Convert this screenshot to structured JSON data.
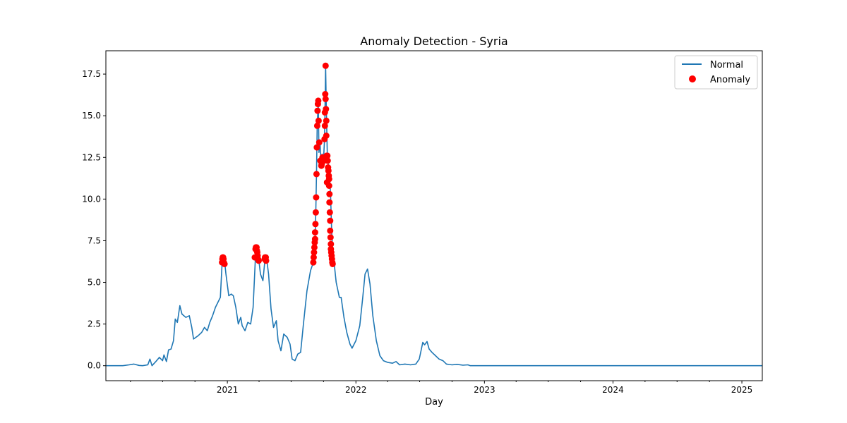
{
  "chart_data": {
    "type": "line",
    "title": "Anomaly Detection - Syria",
    "xlabel": "Day",
    "ylabel": "",
    "x_axis": "date",
    "xlim": [
      "2020-01-22",
      "2025-02-28"
    ],
    "ylim": [
      -0.9,
      18.9
    ],
    "x_tick_labels": [
      "2021",
      "2022",
      "2023",
      "2024",
      "2025"
    ],
    "y_ticks": [
      0.0,
      2.5,
      5.0,
      7.5,
      10.0,
      12.5,
      15.0,
      17.5
    ],
    "y_tick_labels": [
      "0.0",
      "2.5",
      "5.0",
      "7.5",
      "10.0",
      "12.5",
      "15.0",
      "17.5"
    ],
    "grid": false,
    "legend": {
      "position": "top-right",
      "entries": [
        "Normal",
        "Anomaly"
      ]
    },
    "colors": {
      "normal": "#1f77b4",
      "anomaly": "#ff0000"
    },
    "series": [
      {
        "name": "Normal",
        "type": "line",
        "points": [
          [
            "2020-01-22",
            0.0
          ],
          [
            "2020-03-10",
            0.0
          ],
          [
            "2020-03-28",
            0.05
          ],
          [
            "2020-04-10",
            0.1
          ],
          [
            "2020-04-25",
            0.02
          ],
          [
            "2020-05-05",
            0.0
          ],
          [
            "2020-05-20",
            0.05
          ],
          [
            "2020-05-26",
            0.4
          ],
          [
            "2020-06-01",
            0.0
          ],
          [
            "2020-06-12",
            0.25
          ],
          [
            "2020-06-22",
            0.5
          ],
          [
            "2020-07-01",
            0.3
          ],
          [
            "2020-07-05",
            0.65
          ],
          [
            "2020-07-12",
            0.25
          ],
          [
            "2020-07-18",
            0.95
          ],
          [
            "2020-07-25",
            1.0
          ],
          [
            "2020-08-01",
            1.5
          ],
          [
            "2020-08-06",
            2.8
          ],
          [
            "2020-08-12",
            2.6
          ],
          [
            "2020-08-19",
            3.6
          ],
          [
            "2020-08-25",
            3.1
          ],
          [
            "2020-09-05",
            2.9
          ],
          [
            "2020-09-15",
            3.0
          ],
          [
            "2020-09-22",
            2.3
          ],
          [
            "2020-09-27",
            1.6
          ],
          [
            "2020-10-10",
            1.8
          ],
          [
            "2020-10-20",
            2.0
          ],
          [
            "2020-10-28",
            2.3
          ],
          [
            "2020-11-05",
            2.1
          ],
          [
            "2020-11-12",
            2.6
          ],
          [
            "2020-11-20",
            3.0
          ],
          [
            "2020-11-28",
            3.5
          ],
          [
            "2020-12-05",
            3.8
          ],
          [
            "2020-12-12",
            4.1
          ],
          [
            "2020-12-17",
            6.1
          ],
          [
            "2020-12-20",
            6.5
          ],
          [
            "2020-12-24",
            6.3
          ],
          [
            "2020-12-28",
            5.5
          ],
          [
            "2021-01-05",
            4.2
          ],
          [
            "2021-01-12",
            4.3
          ],
          [
            "2021-01-18",
            4.2
          ],
          [
            "2021-01-25",
            3.5
          ],
          [
            "2021-02-01",
            2.5
          ],
          [
            "2021-02-08",
            2.9
          ],
          [
            "2021-02-12",
            2.4
          ],
          [
            "2021-02-20",
            2.1
          ],
          [
            "2021-02-28",
            2.6
          ],
          [
            "2021-03-08",
            2.5
          ],
          [
            "2021-03-15",
            3.5
          ],
          [
            "2021-03-22",
            6.6
          ],
          [
            "2021-03-26",
            7.1
          ],
          [
            "2021-03-30",
            6.6
          ],
          [
            "2021-04-05",
            5.5
          ],
          [
            "2021-04-12",
            5.1
          ],
          [
            "2021-04-18",
            6.4
          ],
          [
            "2021-04-22",
            6.5
          ],
          [
            "2021-04-28",
            5.5
          ],
          [
            "2021-05-05",
            3.4
          ],
          [
            "2021-05-12",
            2.3
          ],
          [
            "2021-05-20",
            2.7
          ],
          [
            "2021-05-25",
            1.5
          ],
          [
            "2021-06-02",
            0.9
          ],
          [
            "2021-06-10",
            1.9
          ],
          [
            "2021-06-20",
            1.7
          ],
          [
            "2021-06-28",
            1.3
          ],
          [
            "2021-07-04",
            0.4
          ],
          [
            "2021-07-12",
            0.3
          ],
          [
            "2021-07-20",
            0.7
          ],
          [
            "2021-07-28",
            0.8
          ],
          [
            "2021-08-05",
            2.5
          ],
          [
            "2021-08-15",
            4.5
          ],
          [
            "2021-08-25",
            5.7
          ],
          [
            "2021-09-02",
            6.2
          ],
          [
            "2021-09-06",
            7.0
          ],
          [
            "2021-09-09",
            9.2
          ],
          [
            "2021-09-11",
            11.5
          ],
          [
            "2021-09-13",
            14.4
          ],
          [
            "2021-09-16",
            15.8
          ],
          [
            "2021-09-18",
            12.8
          ],
          [
            "2021-09-21",
            13.5
          ],
          [
            "2021-09-24",
            12.2
          ],
          [
            "2021-09-27",
            12.7
          ],
          [
            "2021-10-01",
            12.3
          ],
          [
            "2021-10-04",
            13.6
          ],
          [
            "2021-10-06",
            16.3
          ],
          [
            "2021-10-07",
            18.0
          ],
          [
            "2021-10-09",
            15.5
          ],
          [
            "2021-10-12",
            12.5
          ],
          [
            "2021-10-15",
            12.0
          ],
          [
            "2021-10-18",
            11.5
          ],
          [
            "2021-10-21",
            10.3
          ],
          [
            "2021-10-24",
            8.2
          ],
          [
            "2021-10-27",
            6.9
          ],
          [
            "2021-10-31",
            6.2
          ],
          [
            "2021-11-06",
            5.0
          ],
          [
            "2021-11-15",
            4.1
          ],
          [
            "2021-11-20",
            4.1
          ],
          [
            "2021-11-28",
            2.9
          ],
          [
            "2021-12-06",
            2.0
          ],
          [
            "2021-12-15",
            1.3
          ],
          [
            "2021-12-21",
            1.05
          ],
          [
            "2022-01-01",
            1.5
          ],
          [
            "2022-01-12",
            2.4
          ],
          [
            "2022-01-20",
            4.0
          ],
          [
            "2022-01-27",
            5.5
          ],
          [
            "2022-02-03",
            5.8
          ],
          [
            "2022-02-10",
            4.9
          ],
          [
            "2022-02-18",
            3.0
          ],
          [
            "2022-02-28",
            1.5
          ],
          [
            "2022-03-10",
            0.6
          ],
          [
            "2022-03-20",
            0.3
          ],
          [
            "2022-04-01",
            0.2
          ],
          [
            "2022-04-15",
            0.15
          ],
          [
            "2022-04-25",
            0.25
          ],
          [
            "2022-05-05",
            0.05
          ],
          [
            "2022-05-20",
            0.1
          ],
          [
            "2022-06-05",
            0.05
          ],
          [
            "2022-06-20",
            0.1
          ],
          [
            "2022-06-30",
            0.4
          ],
          [
            "2022-07-05",
            0.9
          ],
          [
            "2022-07-10",
            1.4
          ],
          [
            "2022-07-15",
            1.25
          ],
          [
            "2022-07-22",
            1.45
          ],
          [
            "2022-07-28",
            1.0
          ],
          [
            "2022-08-05",
            0.8
          ],
          [
            "2022-08-15",
            0.6
          ],
          [
            "2022-08-25",
            0.4
          ],
          [
            "2022-09-05",
            0.3
          ],
          [
            "2022-09-15",
            0.1
          ],
          [
            "2022-10-01",
            0.05
          ],
          [
            "2022-10-15",
            0.08
          ],
          [
            "2022-11-01",
            0.03
          ],
          [
            "2022-11-15",
            0.05
          ],
          [
            "2022-11-22",
            0.0
          ],
          [
            "2025-02-28",
            0.0
          ]
        ]
      },
      {
        "name": "Anomaly",
        "type": "scatter",
        "points": [
          [
            "2020-12-17",
            6.2
          ],
          [
            "2020-12-18",
            6.4
          ],
          [
            "2020-12-19",
            6.5
          ],
          [
            "2020-12-20",
            6.5
          ],
          [
            "2020-12-21",
            6.4
          ],
          [
            "2020-12-22",
            6.2
          ],
          [
            "2020-12-24",
            6.1
          ],
          [
            "2021-03-20",
            6.5
          ],
          [
            "2021-03-22",
            7.0
          ],
          [
            "2021-03-23",
            7.1
          ],
          [
            "2021-03-25",
            7.1
          ],
          [
            "2021-03-26",
            6.9
          ],
          [
            "2021-03-27",
            6.8
          ],
          [
            "2021-03-28",
            6.6
          ],
          [
            "2021-03-29",
            6.4
          ],
          [
            "2021-03-31",
            6.3
          ],
          [
            "2021-04-17",
            6.4
          ],
          [
            "2021-04-18",
            6.5
          ],
          [
            "2021-04-20",
            6.5
          ],
          [
            "2021-04-21",
            6.3
          ],
          [
            "2021-09-02",
            6.2
          ],
          [
            "2021-09-03",
            6.5
          ],
          [
            "2021-09-04",
            6.8
          ],
          [
            "2021-09-05",
            7.1
          ],
          [
            "2021-09-06",
            7.4
          ],
          [
            "2021-09-07",
            7.6
          ],
          [
            "2021-09-07",
            8.0
          ],
          [
            "2021-09-08",
            8.5
          ],
          [
            "2021-09-09",
            9.2
          ],
          [
            "2021-09-10",
            10.1
          ],
          [
            "2021-09-11",
            11.5
          ],
          [
            "2021-09-12",
            13.1
          ],
          [
            "2021-09-13",
            14.4
          ],
          [
            "2021-09-14",
            15.3
          ],
          [
            "2021-09-15",
            15.7
          ],
          [
            "2021-09-16",
            15.9
          ],
          [
            "2021-09-17",
            14.7
          ],
          [
            "2021-09-19",
            13.4
          ],
          [
            "2021-09-22",
            12.3
          ],
          [
            "2021-09-25",
            12.0
          ],
          [
            "2021-09-26",
            12.1
          ],
          [
            "2021-09-28",
            12.5
          ],
          [
            "2021-10-02",
            12.3
          ],
          [
            "2021-10-04",
            13.6
          ],
          [
            "2021-10-05",
            14.4
          ],
          [
            "2021-10-05",
            15.2
          ],
          [
            "2021-10-06",
            16.3
          ],
          [
            "2021-10-07",
            18.0
          ],
          [
            "2021-10-07",
            16.0
          ],
          [
            "2021-10-08",
            15.4
          ],
          [
            "2021-10-09",
            14.7
          ],
          [
            "2021-10-09",
            13.8
          ],
          [
            "2021-10-10",
            12.6
          ],
          [
            "2021-10-11",
            11.0
          ],
          [
            "2021-10-12",
            12.6
          ],
          [
            "2021-10-13",
            12.3
          ],
          [
            "2021-10-14",
            11.9
          ],
          [
            "2021-10-15",
            11.7
          ],
          [
            "2021-10-16",
            11.4
          ],
          [
            "2021-10-17",
            11.2
          ],
          [
            "2021-10-17",
            10.8
          ],
          [
            "2021-10-18",
            10.3
          ],
          [
            "2021-10-18",
            9.8
          ],
          [
            "2021-10-19",
            9.2
          ],
          [
            "2021-10-20",
            8.7
          ],
          [
            "2021-10-20",
            8.1
          ],
          [
            "2021-10-21",
            7.7
          ],
          [
            "2021-10-22",
            7.3
          ],
          [
            "2021-10-22",
            7.0
          ],
          [
            "2021-10-23",
            6.8
          ],
          [
            "2021-10-24",
            6.6
          ],
          [
            "2021-10-25",
            6.4
          ],
          [
            "2021-10-26",
            6.2
          ],
          [
            "2021-10-27",
            6.1
          ]
        ]
      }
    ]
  }
}
